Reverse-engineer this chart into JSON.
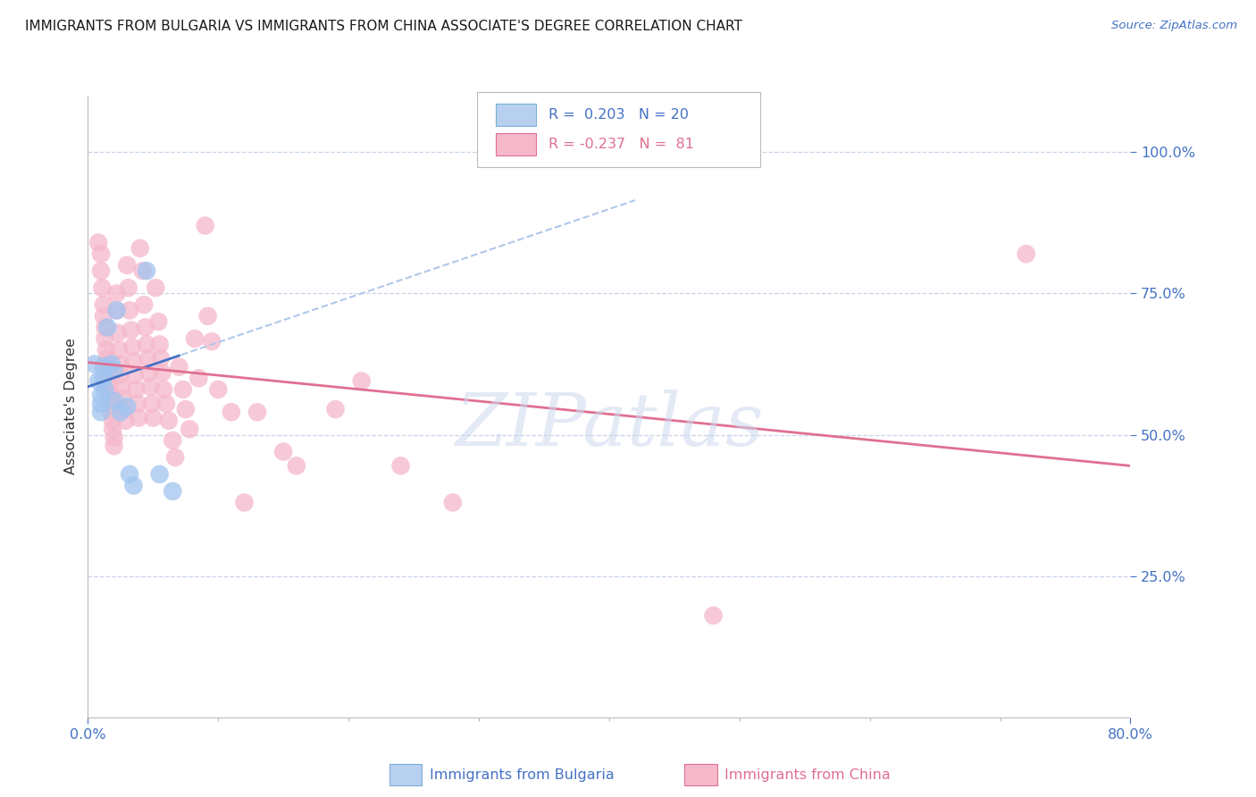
{
  "title": "IMMIGRANTS FROM BULGARIA VS IMMIGRANTS FROM CHINA ASSOCIATE'S DEGREE CORRELATION CHART",
  "source": "Source: ZipAtlas.com",
  "ylabel_ticks": [
    "100.0%",
    "75.0%",
    "50.0%",
    "25.0%"
  ],
  "ylabel_values": [
    1.0,
    0.75,
    0.5,
    0.25
  ],
  "ylabel_label": "Associate's Degree",
  "xlim": [
    0.0,
    0.8
  ],
  "ylim": [
    0.0,
    1.1
  ],
  "bulgaria_color": "#a0c4f0",
  "china_color": "#f5b8cb",
  "bulgaria_line_color": "#4472c4",
  "china_line_color": "#e07090",
  "bulgaria_dashed_color": "#b0c8e8",
  "bulgaria_points": [
    [
      0.005,
      0.625
    ],
    [
      0.008,
      0.595
    ],
    [
      0.01,
      0.57
    ],
    [
      0.01,
      0.555
    ],
    [
      0.01,
      0.54
    ],
    [
      0.012,
      0.62
    ],
    [
      0.012,
      0.6
    ],
    [
      0.013,
      0.58
    ],
    [
      0.015,
      0.69
    ],
    [
      0.018,
      0.625
    ],
    [
      0.02,
      0.56
    ],
    [
      0.02,
      0.615
    ],
    [
      0.022,
      0.72
    ],
    [
      0.025,
      0.54
    ],
    [
      0.03,
      0.55
    ],
    [
      0.032,
      0.43
    ],
    [
      0.035,
      0.41
    ],
    [
      0.045,
      0.79
    ],
    [
      0.055,
      0.43
    ],
    [
      0.065,
      0.4
    ]
  ],
  "china_points": [
    [
      0.008,
      0.84
    ],
    [
      0.01,
      0.82
    ],
    [
      0.01,
      0.79
    ],
    [
      0.011,
      0.76
    ],
    [
      0.012,
      0.73
    ],
    [
      0.012,
      0.71
    ],
    [
      0.013,
      0.69
    ],
    [
      0.013,
      0.67
    ],
    [
      0.014,
      0.65
    ],
    [
      0.015,
      0.635
    ],
    [
      0.015,
      0.615
    ],
    [
      0.016,
      0.6
    ],
    [
      0.017,
      0.585
    ],
    [
      0.017,
      0.57
    ],
    [
      0.018,
      0.555
    ],
    [
      0.018,
      0.54
    ],
    [
      0.019,
      0.525
    ],
    [
      0.019,
      0.51
    ],
    [
      0.02,
      0.495
    ],
    [
      0.02,
      0.48
    ],
    [
      0.022,
      0.75
    ],
    [
      0.022,
      0.72
    ],
    [
      0.023,
      0.68
    ],
    [
      0.024,
      0.65
    ],
    [
      0.025,
      0.625
    ],
    [
      0.025,
      0.605
    ],
    [
      0.026,
      0.585
    ],
    [
      0.027,
      0.565
    ],
    [
      0.028,
      0.545
    ],
    [
      0.029,
      0.525
    ],
    [
      0.03,
      0.8
    ],
    [
      0.031,
      0.76
    ],
    [
      0.032,
      0.72
    ],
    [
      0.033,
      0.685
    ],
    [
      0.034,
      0.655
    ],
    [
      0.035,
      0.63
    ],
    [
      0.036,
      0.605
    ],
    [
      0.037,
      0.58
    ],
    [
      0.038,
      0.555
    ],
    [
      0.039,
      0.53
    ],
    [
      0.04,
      0.83
    ],
    [
      0.042,
      0.79
    ],
    [
      0.043,
      0.73
    ],
    [
      0.044,
      0.69
    ],
    [
      0.045,
      0.66
    ],
    [
      0.046,
      0.635
    ],
    [
      0.047,
      0.61
    ],
    [
      0.048,
      0.585
    ],
    [
      0.049,
      0.555
    ],
    [
      0.05,
      0.53
    ],
    [
      0.052,
      0.76
    ],
    [
      0.054,
      0.7
    ],
    [
      0.055,
      0.66
    ],
    [
      0.056,
      0.635
    ],
    [
      0.057,
      0.61
    ],
    [
      0.058,
      0.58
    ],
    [
      0.06,
      0.555
    ],
    [
      0.062,
      0.525
    ],
    [
      0.065,
      0.49
    ],
    [
      0.067,
      0.46
    ],
    [
      0.07,
      0.62
    ],
    [
      0.073,
      0.58
    ],
    [
      0.075,
      0.545
    ],
    [
      0.078,
      0.51
    ],
    [
      0.082,
      0.67
    ],
    [
      0.085,
      0.6
    ],
    [
      0.09,
      0.87
    ],
    [
      0.092,
      0.71
    ],
    [
      0.095,
      0.665
    ],
    [
      0.1,
      0.58
    ],
    [
      0.11,
      0.54
    ],
    [
      0.12,
      0.38
    ],
    [
      0.13,
      0.54
    ],
    [
      0.15,
      0.47
    ],
    [
      0.16,
      0.445
    ],
    [
      0.19,
      0.545
    ],
    [
      0.21,
      0.595
    ],
    [
      0.24,
      0.445
    ],
    [
      0.28,
      0.38
    ],
    [
      0.48,
      0.18
    ],
    [
      0.72,
      0.82
    ]
  ],
  "bulgaria_solid_line": {
    "x0": 0.0,
    "x1": 0.07,
    "y0": 0.585,
    "y1": 0.64
  },
  "bulgaria_dashed_line": {
    "x0": 0.0,
    "x1": 0.42,
    "y0": 0.585,
    "y1": 0.915
  },
  "china_trend_line": {
    "x0": 0.0,
    "x1": 0.8,
    "y0": 0.628,
    "y1": 0.445
  },
  "watermark_text": "ZIPatlas",
  "bg_color": "#ffffff",
  "grid_color": "#c8d4e8",
  "tick_color": "#4472c4",
  "title_color": "#1a1a1a",
  "axis_label_color": "#333333",
  "legend_r1": "R =  0.203   N = 20",
  "legend_r2": "R = -0.237   N =  81",
  "legend_color1": "#4472c4",
  "legend_color2": "#e07090",
  "legend_fc1": "#b8d0f0",
  "legend_fc2": "#f5b8cb",
  "bottom_label1": "Immigrants from Bulgaria",
  "bottom_label2": "Immigrants from China"
}
